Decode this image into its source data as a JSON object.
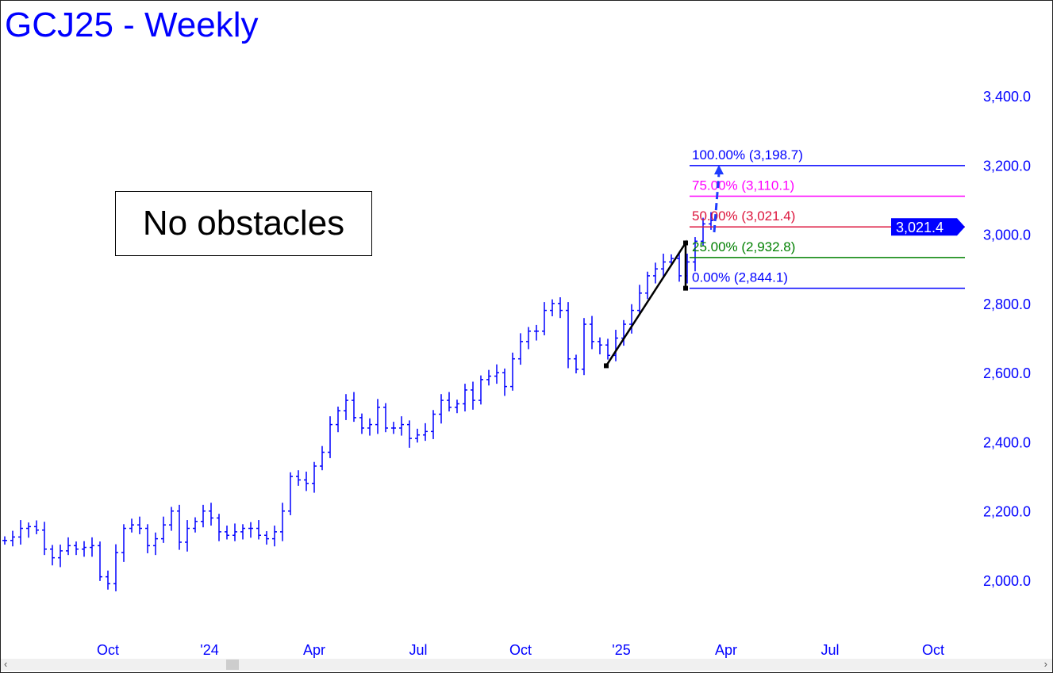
{
  "title": "GCJ25 - Weekly",
  "annotation": "No obstacles",
  "chart_data": {
    "type": "ohlc-bar",
    "title": "GCJ25 - Weekly",
    "y_ticks": [
      "2,000.0",
      "2,200.0",
      "2,400.0",
      "2,600.0",
      "2,800.0",
      "3,000.0",
      "3,200.0",
      "3,400.0"
    ],
    "y_tick_values": [
      2000,
      2200,
      2400,
      2600,
      2800,
      3000,
      3200,
      3400
    ],
    "ylim": [
      1880,
      3560
    ],
    "x_ticks": [
      "Oct",
      "'24",
      "Apr",
      "Jul",
      "Oct",
      "'25",
      "Apr",
      "Jul",
      "Oct"
    ],
    "close": [
      2115,
      2125,
      2150,
      2155,
      2145,
      2090,
      2065,
      2085,
      2100,
      2090,
      2095,
      2100,
      2010,
      1990,
      2080,
      2150,
      2160,
      2150,
      2100,
      2120,
      2160,
      2200,
      2110,
      2150,
      2170,
      2200,
      2180,
      2140,
      2130,
      2140,
      2150,
      2150,
      2130,
      2120,
      2140,
      2200,
      2300,
      2290,
      2280,
      2330,
      2370,
      2450,
      2490,
      2520,
      2470,
      2440,
      2450,
      2500,
      2440,
      2440,
      2450,
      2410,
      2420,
      2430,
      2480,
      2520,
      2500,
      2510,
      2550,
      2520,
      2580,
      2590,
      2600,
      2560,
      2640,
      2690,
      2720,
      2720,
      2780,
      2800,
      2780,
      2640,
      2610,
      2740,
      2690,
      2680,
      2650,
      2700,
      2740,
      2780,
      2830,
      2880,
      2900,
      2920,
      2930,
      2880,
      2920,
      2980,
      3030,
      3040
    ],
    "series_color": "#0000ff",
    "last_price": "3,021.4",
    "fib_levels": [
      {
        "label": "100.00% (3,198.7)",
        "value": 3198.7,
        "color": "#0000ff"
      },
      {
        "label": "75.00% (3,110.1)",
        "value": 3110.1,
        "color": "#ff00ff"
      },
      {
        "label": "50.00% (3,021.4)",
        "value": 3021.4,
        "color": "#dc143c"
      },
      {
        "label": "25.00% (2,932.8)",
        "value": 2932.8,
        "color": "#008000"
      },
      {
        "label": "0.00% (2,844.1)",
        "value": 2844.1,
        "color": "#0000ff"
      }
    ],
    "abc_points": [
      2620,
      2975,
      2844.1
    ],
    "projection_target": 3198.7,
    "grid": false
  }
}
